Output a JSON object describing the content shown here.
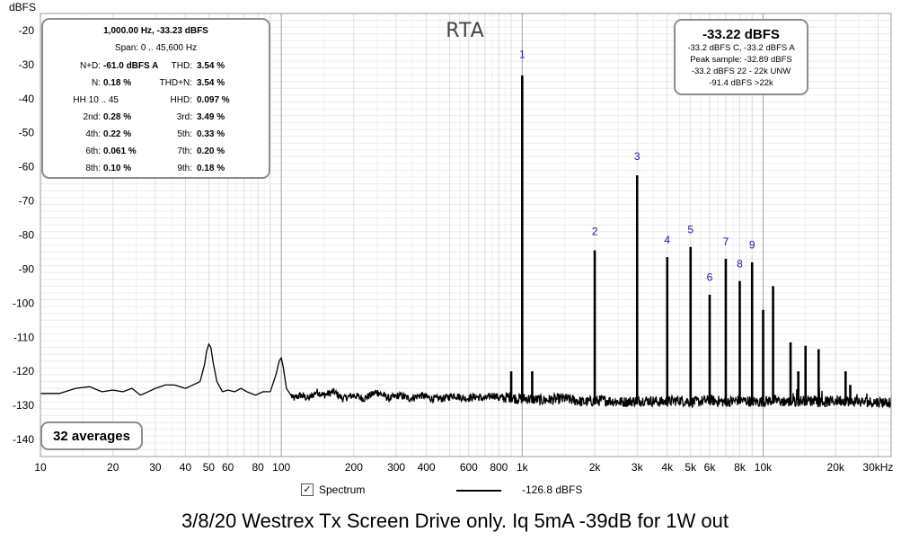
{
  "chart_data": {
    "type": "line",
    "title": "RTA",
    "xlabel": "",
    "ylabel": "dBFS",
    "x_scale": "log",
    "xlim": [
      10,
      34000
    ],
    "ylim": [
      -145,
      -15
    ],
    "grid": true,
    "x_tick_labels": [
      "10",
      "20",
      "30",
      "40",
      "50",
      "60",
      "80",
      "100",
      "200",
      "300",
      "400",
      "600",
      "800",
      "1k",
      "2k",
      "3k",
      "4k",
      "5k",
      "6k",
      "8k",
      "10k",
      "20k",
      "30kHz"
    ],
    "x_tick_values": [
      10,
      20,
      30,
      40,
      50,
      60,
      80,
      100,
      200,
      300,
      400,
      600,
      800,
      1000,
      2000,
      3000,
      4000,
      5000,
      6000,
      8000,
      10000,
      20000,
      30000
    ],
    "y_tick_values": [
      -20,
      -30,
      -40,
      -50,
      -60,
      -70,
      -80,
      -90,
      -100,
      -110,
      -120,
      -130,
      -140
    ],
    "y_tick_labels": [
      "-20",
      "-30",
      "-40",
      "-50",
      "-60",
      "-70",
      "-80",
      "-90",
      "-100",
      "-110",
      "-120",
      "-130",
      "-140"
    ],
    "series": [
      {
        "name": "Spectrum",
        "noise_floor": [
          [
            10,
            -126.5
          ],
          [
            12,
            -126.5
          ],
          [
            14,
            -125
          ],
          [
            16,
            -124.5
          ],
          [
            18,
            -126
          ],
          [
            20,
            -125.5
          ],
          [
            22,
            -126
          ],
          [
            24,
            -125
          ],
          [
            26,
            -127
          ],
          [
            28,
            -126
          ],
          [
            30,
            -125
          ],
          [
            33,
            -124
          ],
          [
            36,
            -124
          ],
          [
            40,
            -125
          ],
          [
            43,
            -124
          ],
          [
            46,
            -123
          ],
          [
            48,
            -118
          ],
          [
            49,
            -114
          ],
          [
            50,
            -112
          ],
          [
            51,
            -113
          ],
          [
            52,
            -117
          ],
          [
            54,
            -123
          ],
          [
            57,
            -126
          ],
          [
            60,
            -125.5
          ],
          [
            64,
            -126
          ],
          [
            68,
            -125
          ],
          [
            72,
            -126
          ],
          [
            78,
            -127
          ],
          [
            84,
            -126
          ],
          [
            90,
            -126
          ],
          [
            95,
            -121
          ],
          [
            98,
            -117
          ],
          [
            100,
            -116
          ],
          [
            102,
            -119
          ],
          [
            105,
            -125
          ],
          [
            112,
            -128
          ],
          [
            120,
            -127
          ],
          [
            130,
            -128
          ],
          [
            140,
            -126
          ],
          [
            150,
            -127
          ],
          [
            165,
            -126
          ],
          [
            180,
            -128
          ],
          [
            200,
            -127
          ],
          [
            220,
            -128
          ],
          [
            250,
            -126
          ],
          [
            280,
            -128
          ],
          [
            310,
            -127
          ],
          [
            340,
            -128
          ],
          [
            380,
            -127
          ],
          [
            420,
            -128
          ],
          [
            470,
            -128
          ],
          [
            520,
            -127
          ],
          [
            580,
            -128
          ],
          [
            640,
            -127.5
          ],
          [
            700,
            -128
          ],
          [
            760,
            -127
          ],
          [
            820,
            -128
          ],
          [
            880,
            -127.5
          ],
          [
            950,
            -128
          ],
          [
            1050,
            -128
          ],
          [
            1200,
            -128.5
          ],
          [
            1500,
            -128
          ],
          [
            1800,
            -129
          ],
          [
            2200,
            -128.5
          ],
          [
            2600,
            -129
          ],
          [
            3200,
            -128.5
          ],
          [
            3800,
            -129
          ],
          [
            4500,
            -128.5
          ],
          [
            5200,
            -129
          ],
          [
            6000,
            -128.5
          ],
          [
            7000,
            -129
          ],
          [
            8000,
            -128.5
          ],
          [
            9500,
            -129
          ],
          [
            11000,
            -128.5
          ],
          [
            13000,
            -129
          ],
          [
            15000,
            -128.5
          ],
          [
            18000,
            -129
          ],
          [
            21000,
            -128.5
          ],
          [
            25000,
            -129
          ],
          [
            29000,
            -129
          ],
          [
            33000,
            -129
          ]
        ],
        "peaks": [
          [
            900,
            -120
          ],
          [
            1000,
            -33.2
          ],
          [
            1100,
            -120
          ],
          [
            2000,
            -84.5
          ],
          [
            3000,
            -62.5
          ],
          [
            4000,
            -86.5
          ],
          [
            5000,
            -83.5
          ],
          [
            6000,
            -97.5
          ],
          [
            7000,
            -87
          ],
          [
            8000,
            -93.5
          ],
          [
            9000,
            -88
          ],
          [
            10000,
            -102
          ],
          [
            11000,
            -95
          ],
          [
            13000,
            -111.5
          ],
          [
            14000,
            -120
          ],
          [
            15000,
            -112.5
          ],
          [
            17000,
            -113.5
          ],
          [
            22000,
            -120
          ],
          [
            23000,
            -124
          ]
        ]
      }
    ],
    "harmonic_markers": [
      {
        "label": "1",
        "freq": 1000,
        "level": -28
      },
      {
        "label": "2",
        "freq": 2000,
        "level": -80
      },
      {
        "label": "3",
        "freq": 3000,
        "level": -58
      },
      {
        "label": "4",
        "freq": 4000,
        "level": -82.5
      },
      {
        "label": "5",
        "freq": 5000,
        "level": -79.5
      },
      {
        "label": "6",
        "freq": 6000,
        "level": -93.5
      },
      {
        "label": "7",
        "freq": 7000,
        "level": -83
      },
      {
        "label": "8",
        "freq": 8000,
        "level": -89.5
      },
      {
        "label": "9",
        "freq": 9000,
        "level": -84
      }
    ]
  },
  "stats_panel": {
    "header": "1,000.00 Hz, -33.23 dBFS",
    "span": "Span: 0 .. 45,600 Hz",
    "rows": [
      {
        "l1": "N+D:",
        "v1": "-61.0 dBFS A",
        "l2": "THD:",
        "v2": "3.54 %"
      },
      {
        "l1": "N:",
        "v1": "0.18 %",
        "l2": "THD+N:",
        "v2": "3.54 %"
      },
      {
        "l1": "HH 10 .. 45",
        "v1": "",
        "l2": "HHD:",
        "v2": "0.097 %"
      },
      {
        "l1": "2nd:",
        "v1": "0.28 %",
        "l2": "3rd:",
        "v2": "3.49 %"
      },
      {
        "l1": "4th:",
        "v1": "0.22 %",
        "l2": "5th:",
        "v2": "0.33 %"
      },
      {
        "l1": "6th:",
        "v1": "0.061 %",
        "l2": "7th:",
        "v2": "0.20 %"
      },
      {
        "l1": "8th:",
        "v1": "0.10 %",
        "l2": "9th:",
        "v2": "0.18 %"
      }
    ]
  },
  "level_panel": {
    "main": "-33.22 dBFS",
    "lines": [
      "-33.2 dBFS C, -33.2 dBFS A",
      "Peak sample: -32.89 dBFS",
      "-33.2 dBFS 22 - 22k UNW",
      "-91.4 dBFS >22k"
    ]
  },
  "averages": "32 averages",
  "legend": {
    "name": "Spectrum",
    "value": "-126.8 dBFS",
    "checked": "✓"
  },
  "caption": "3/8/20 Westrex Tx Screen Drive only. Iq 5mA -39dB for 1W out",
  "colors": {
    "trace": "#000000",
    "plot_bg": "#ffffff",
    "grid": "#d8d8d8",
    "frame": "#9a9a9a",
    "harmonic_label": "#1a1aa8"
  }
}
